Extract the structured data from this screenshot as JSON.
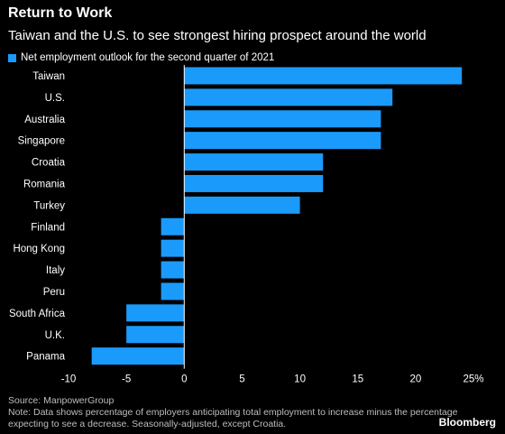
{
  "header": {
    "title": "Return to Work",
    "subtitle": "Taiwan and the U.S. to see strongest hiring prospect around the world"
  },
  "legend": {
    "label": "Net employment outlook for the second quarter of 2021",
    "color": "#1a9bfc"
  },
  "chart_data": {
    "type": "bar",
    "orientation": "horizontal",
    "categories": [
      "Taiwan",
      "U.S.",
      "Australia",
      "Singapore",
      "Croatia",
      "Romania",
      "Turkey",
      "Finland",
      "Hong Kong",
      "Italy",
      "Peru",
      "South Africa",
      "U.K.",
      "Panama"
    ],
    "series": [
      {
        "name": "Net employment outlook for the second quarter of 2021",
        "values": [
          24,
          18,
          17,
          17,
          12,
          12,
          10,
          -2,
          -2,
          -2,
          -2,
          -5,
          -5,
          -8
        ],
        "color": "#1a9bfc"
      }
    ],
    "xlim": [
      -10,
      25
    ],
    "xticks": [
      -10,
      -5,
      0,
      5,
      10,
      15,
      20,
      25
    ],
    "xtick_labels": [
      "-10",
      "-5",
      "0",
      "5",
      "10",
      "15",
      "20",
      "25%"
    ],
    "grid": false
  },
  "footer": {
    "source": "Source: ManpowerGroup",
    "note": "Note: Data shows percentage of employers anticipating total employment to increase minus the percentage expecting to see a decrease. Seasonally-adjusted, except Croatia.",
    "brand": "Bloomberg"
  }
}
